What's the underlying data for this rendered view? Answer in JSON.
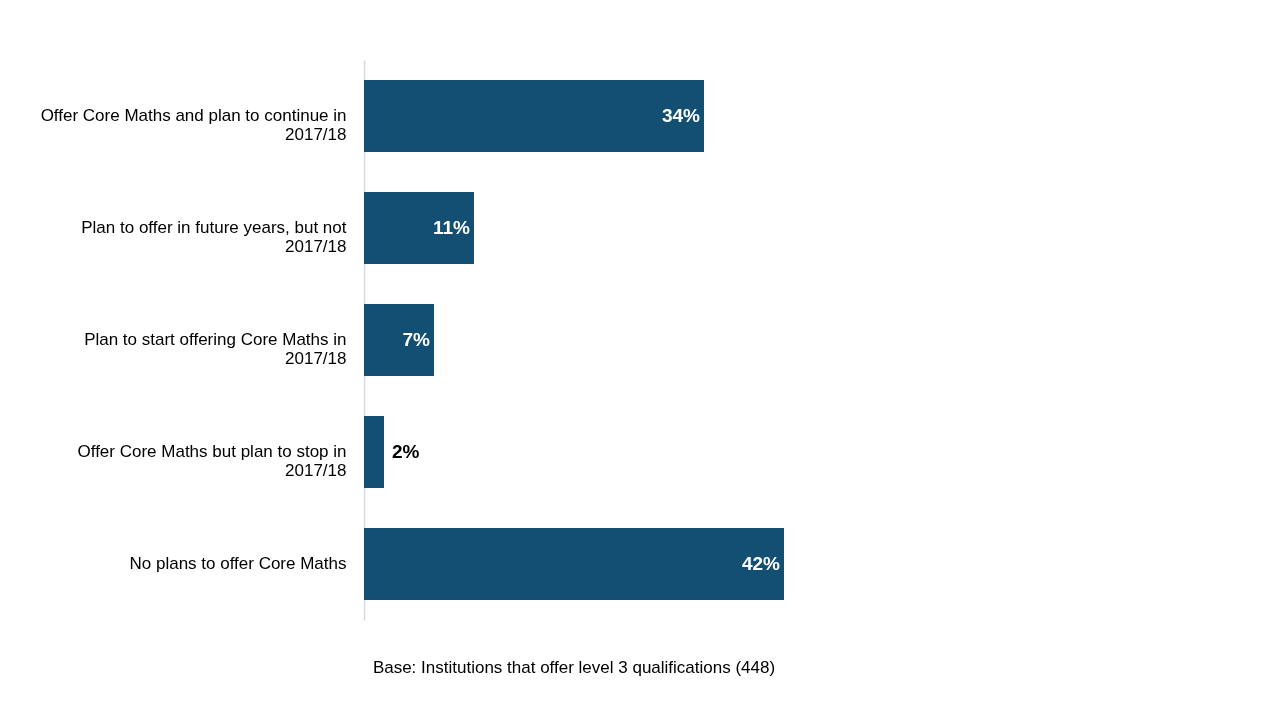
{
  "chart_data": {
    "type": "bar",
    "orientation": "horizontal",
    "categories": [
      "Offer Core Maths and plan to continue in 2017/18",
      "Plan to offer in future years, but not 2017/18",
      "Plan to start offering Core Maths in 2017/18",
      "Offer Core Maths but plan to stop in 2017/18",
      "No plans to offer Core Maths"
    ],
    "values": [
      34,
      11,
      7,
      2,
      42
    ],
    "value_labels": [
      "34%",
      "11%",
      "7%",
      "2%",
      "42%"
    ],
    "color": "#124f72",
    "annotations": [
      "Base:  Institutions that offer level 3 qualifications (448)"
    ]
  }
}
